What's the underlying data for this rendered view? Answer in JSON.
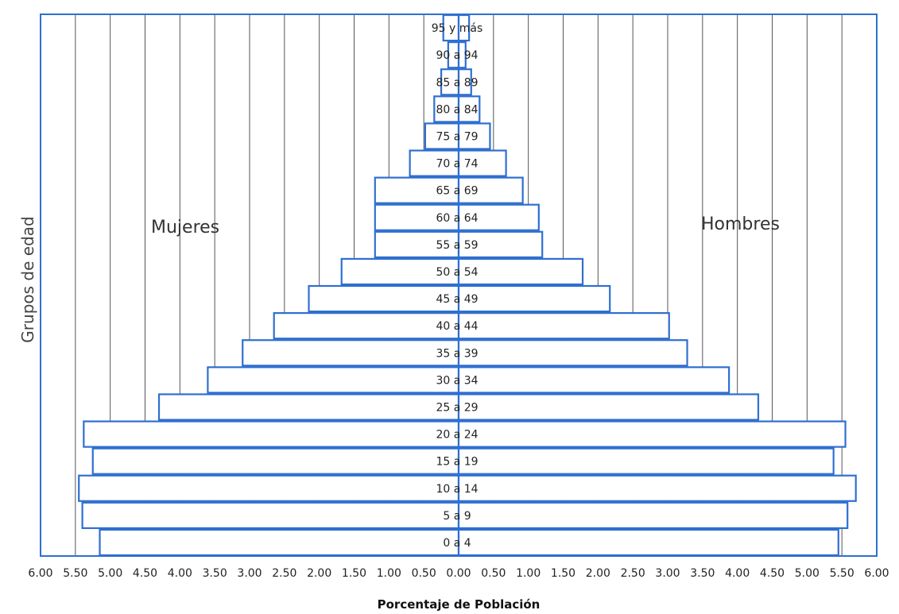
{
  "chart_data": {
    "type": "bar",
    "orientation": "horizontal-pyramid",
    "xlabel": "Porcentaje de Población",
    "ylabel": "Grupos de edad",
    "left_label": "Mujeres",
    "right_label": "Hombres",
    "xlim": [
      -6.0,
      6.0
    ],
    "xticks": [
      "6.00",
      "5.50",
      "5.00",
      "4.50",
      "4.00",
      "3.50",
      "3.00",
      "2.50",
      "2.00",
      "1.50",
      "1.00",
      "0.50",
      "0.00",
      "0.50",
      "1.00",
      "1.50",
      "2.00",
      "2.50",
      "3.00",
      "3.50",
      "4.00",
      "4.50",
      "5.00",
      "5.50",
      "6.00"
    ],
    "grid": "vertical",
    "categories": [
      "0 a 4",
      "5 a 9",
      "10 a 14",
      "15 a 19",
      "20 a 24",
      "25 a 29",
      "30 a 34",
      "35 a 39",
      "40 a 44",
      "45 a 49",
      "50 a 54",
      "55 a 59",
      "60 a 64",
      "65 a 69",
      "70 a 74",
      "75 a 79",
      "80 a 84",
      "85 a 89",
      "90 a 94",
      "95 y más"
    ],
    "series": [
      {
        "name": "Mujeres",
        "side": "left",
        "values": [
          5.15,
          5.4,
          5.45,
          5.25,
          5.38,
          4.3,
          3.6,
          3.1,
          2.65,
          2.15,
          1.68,
          1.2,
          1.2,
          1.2,
          0.7,
          0.48,
          0.35,
          0.25,
          0.15,
          0.22
        ],
        "color": "#ffffff"
      },
      {
        "name": "Hombres",
        "side": "right",
        "values": [
          5.45,
          5.58,
          5.7,
          5.38,
          5.55,
          4.3,
          3.88,
          3.28,
          3.02,
          2.17,
          1.78,
          1.2,
          1.15,
          0.92,
          0.68,
          0.45,
          0.3,
          0.18,
          0.1,
          0.15
        ],
        "color": "#ffffff"
      }
    ],
    "bar_stroke": "#2f6fd0",
    "frame_color": "#2f6fd0",
    "grid_color": "#555555"
  }
}
